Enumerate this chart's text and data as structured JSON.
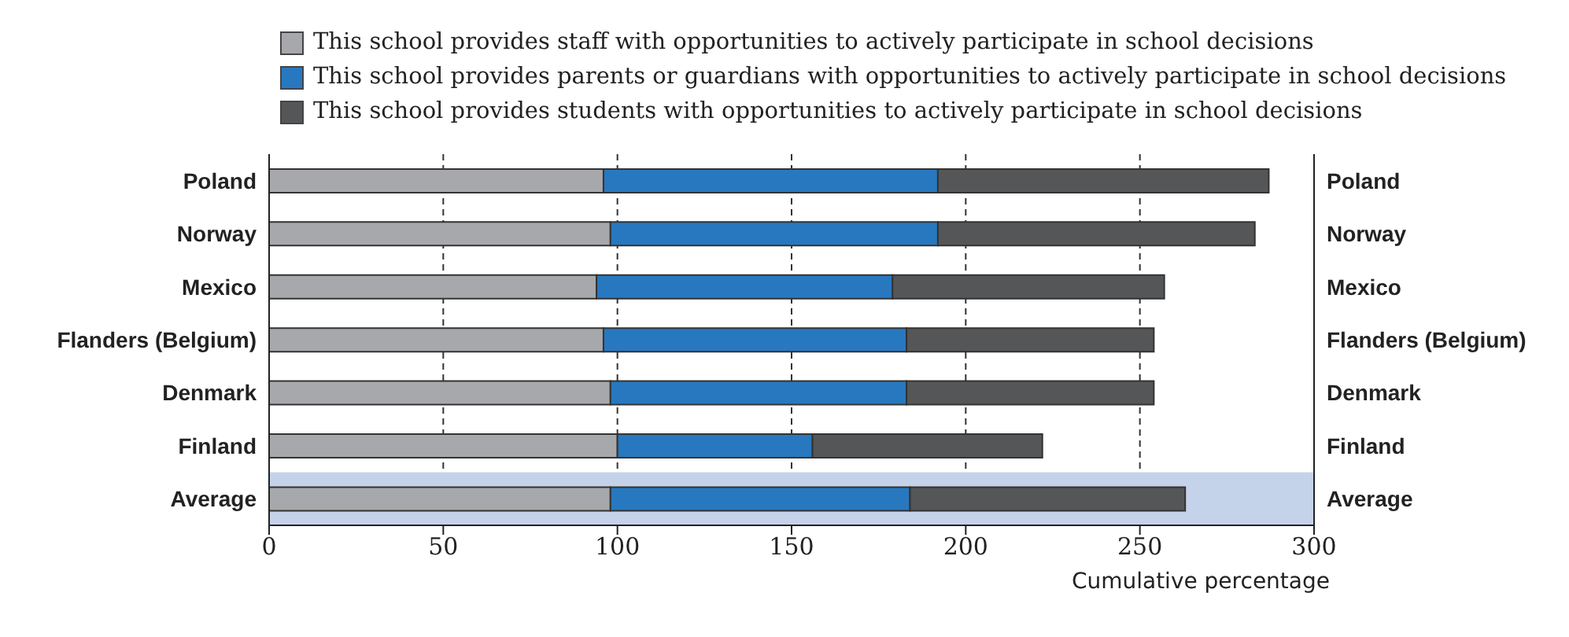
{
  "chart_data": {
    "type": "bar",
    "orientation": "horizontal",
    "stacked": true,
    "xlabel": "Cumulative percentage",
    "categories": [
      "Poland",
      "Norway",
      "Mexico",
      "Flanders (Belgium)",
      "Denmark",
      "Finland",
      "Average"
    ],
    "series": [
      {
        "name": "This school provides staff with opportunities to actively participate in school decisions",
        "color": "#a7a8ab",
        "values": [
          96,
          98,
          94,
          96,
          98,
          100,
          98
        ]
      },
      {
        "name": "This school provides parents or guardians with opportunities to actively participate in school decisions",
        "color": "#2878c0",
        "values": [
          96,
          94,
          85,
          87,
          85,
          56,
          86
        ]
      },
      {
        "name": "This school provides students with opportunities to actively participate in school decisions",
        "color": "#555658",
        "values": [
          95,
          91,
          78,
          71,
          71,
          66,
          79
        ]
      }
    ],
    "xlim": [
      0,
      300
    ],
    "xticks": [
      0,
      50,
      100,
      150,
      200,
      250,
      300
    ],
    "grid": "x",
    "legend": "top",
    "bands": [
      {
        "axis": "y",
        "from": "Average",
        "to": "Average",
        "color": "#c5d3ea"
      }
    ]
  }
}
